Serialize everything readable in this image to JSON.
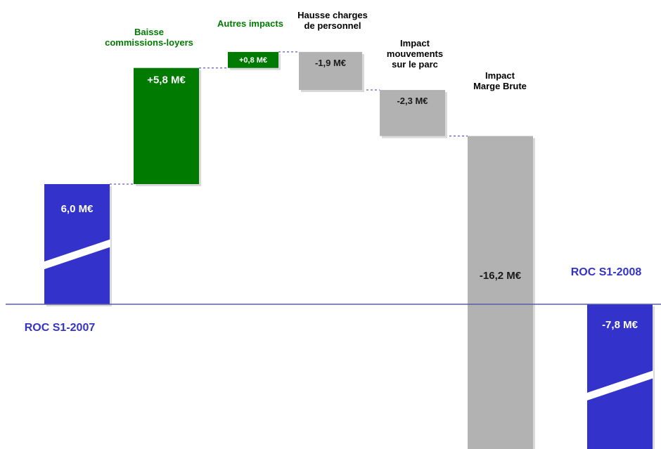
{
  "chart_data": {
    "type": "waterfall",
    "title": "",
    "xlabel": "",
    "ylabel": "",
    "y_unit": "M€",
    "ylim": [
      -17.6,
      13.9
    ],
    "grid": false,
    "steps": [
      {
        "kind": "total",
        "name": "ROC S1-2007",
        "value": 6.0,
        "label": "6,0 M€",
        "color": "#3333cc",
        "break": true
      },
      {
        "kind": "delta",
        "name": "Baisse\ncommissions-loyers",
        "value": 5.8,
        "label": "+5,8 M€",
        "color": "#007a00"
      },
      {
        "kind": "delta",
        "name": "Autres impacts",
        "value": 0.8,
        "label": "+0,8 M€",
        "color": "#007a00"
      },
      {
        "kind": "delta",
        "name": "Hausse charges\nde personnel",
        "value": -1.9,
        "label": "-1,9 M€",
        "color": "#b2b2b2"
      },
      {
        "kind": "delta",
        "name": "Impact\nmouvements\nsur le parc",
        "value": -2.3,
        "label": "-2,3 M€",
        "color": "#b2b2b2"
      },
      {
        "kind": "delta",
        "name": "Impact\nMarge Brute",
        "value": -16.2,
        "label": "-16,2 M€",
        "color": "#b2b2b2"
      },
      {
        "kind": "total",
        "name": "ROC S1-2008",
        "value": -7.8,
        "label": "-7,8 M€",
        "color": "#3333cc",
        "break": true
      }
    ]
  }
}
